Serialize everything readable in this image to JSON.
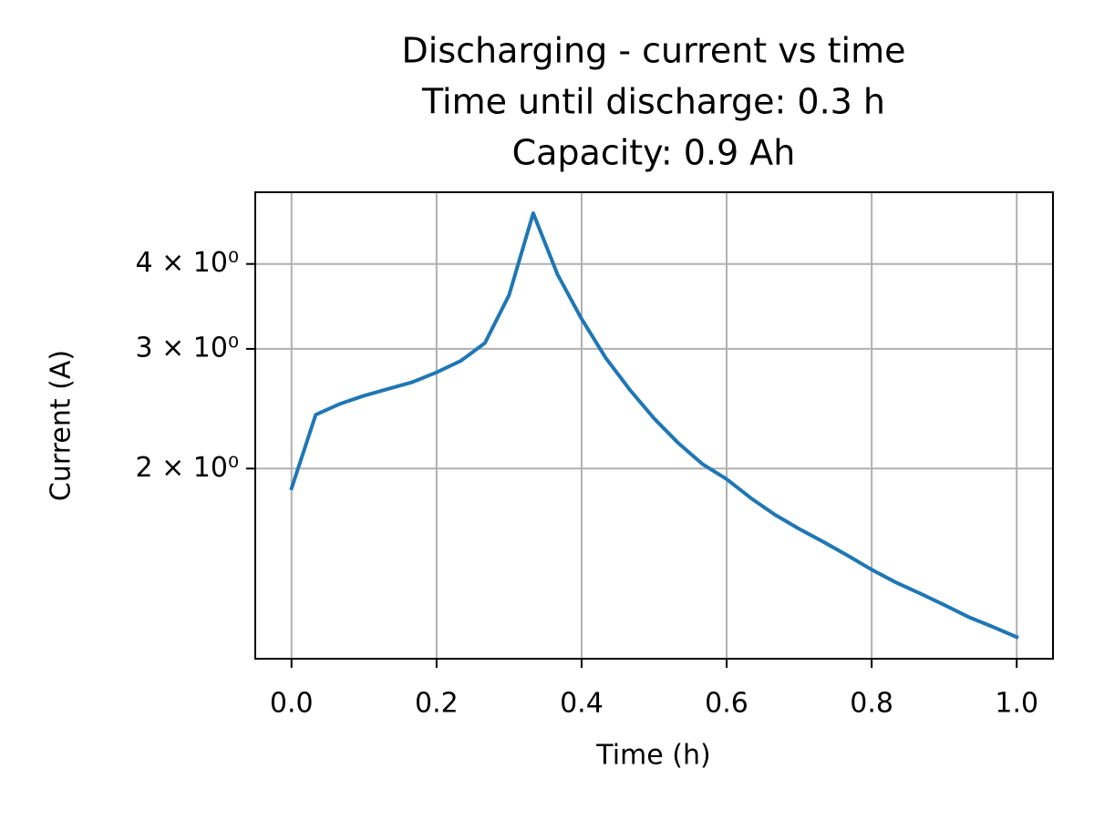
{
  "chart_data": {
    "type": "line",
    "title": "Discharging - current vs time",
    "subtitle": [
      "Time until discharge: 0.3 h",
      "Capacity: 0.9 Ah"
    ],
    "x_label": "Time (h)",
    "y_label": "Current (A)",
    "x": [
      0,
      0.0333,
      0.0667,
      0.1,
      0.1333,
      0.1667,
      0.2,
      0.2333,
      0.2667,
      0.3,
      0.3333,
      0.3667,
      0.4,
      0.4333,
      0.4667,
      0.5,
      0.5333,
      0.5667,
      0.6,
      0.6333,
      0.6667,
      0.7,
      0.7333,
      0.7667,
      0.8,
      0.8333,
      0.8667,
      0.9,
      0.9333,
      0.9667,
      1.0
    ],
    "series": [
      {
        "color": "#1f77b4",
        "values": [
          1.87,
          2.4,
          2.49,
          2.56,
          2.62,
          2.68,
          2.77,
          2.88,
          3.06,
          3.6,
          4.75,
          3.86,
          3.32,
          2.91,
          2.61,
          2.37,
          2.18,
          2.03,
          1.93,
          1.81,
          1.71,
          1.63,
          1.56,
          1.49,
          1.42,
          1.36,
          1.31,
          1.26,
          1.21,
          1.17,
          1.13
        ]
      }
    ],
    "xlim": [
      -0.05,
      1.05
    ],
    "xticks": [
      {
        "value": 0,
        "label": "0.0"
      },
      0.2,
      0.4,
      0.6,
      0.8,
      {
        "value": 1,
        "label": "1.0"
      }
    ],
    "ylim": [
      1.05,
      5.1
    ],
    "y_scale": "log",
    "yticks": [
      {
        "value": 2,
        "label": "2 × 10⁰"
      },
      {
        "value": 3,
        "label": "3 × 10⁰"
      },
      {
        "value": 4,
        "label": "4 × 10⁰"
      }
    ],
    "grid": true
  }
}
